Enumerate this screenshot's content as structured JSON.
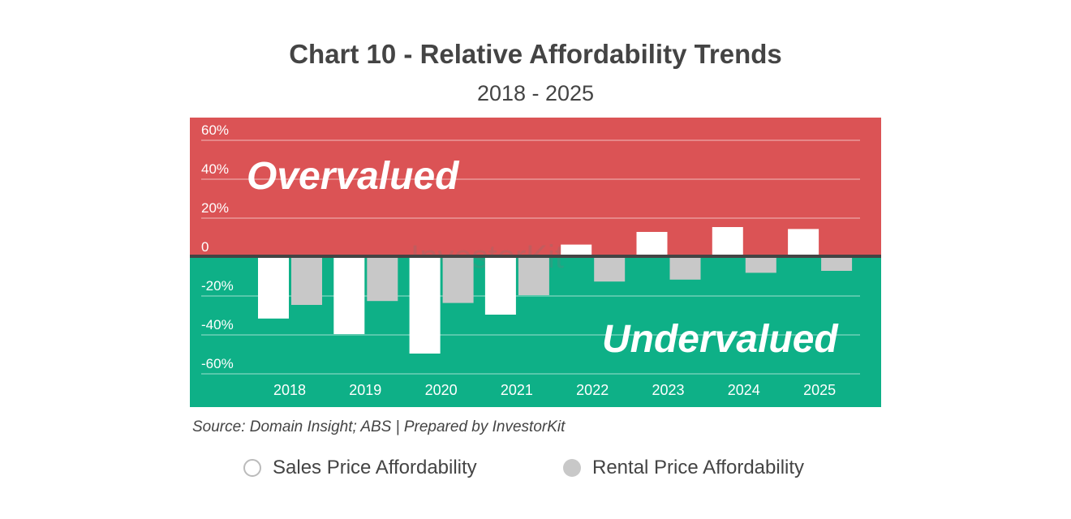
{
  "chart_data": {
    "type": "bar",
    "title": "Chart 10 - Relative Affordability Trends",
    "subtitle": "2018 - 2025",
    "categories": [
      "2018",
      "2019",
      "2020",
      "2021",
      "2022",
      "2023",
      "2024",
      "2025"
    ],
    "series": [
      {
        "name": "Sales Price Affordability",
        "values": [
          -32,
          -40,
          -50,
          -30,
          6,
          12.5,
          15,
          14
        ],
        "color": "#ffffff"
      },
      {
        "name": "Rental Price Affordability",
        "values": [
          -25,
          -23,
          -24,
          -20,
          -13,
          -12,
          -8.5,
          -7.5
        ],
        "color": "#c8c8c8"
      }
    ],
    "ylim": [
      -75,
      70
    ],
    "yticks": [
      60,
      40,
      20,
      0,
      -20,
      -40,
      -60
    ],
    "ytick_labels": [
      "60%",
      "40%",
      "20%",
      "0",
      "-20%",
      "-40%",
      "-60%"
    ],
    "grid": true,
    "legend": "bottom",
    "regions": {
      "over_label": "Overvalued",
      "over_color": "#db5355",
      "under_label": "Undervalued",
      "under_color": "#0eb087"
    },
    "watermark": "InvestorKit",
    "source": "Source: Domain Insight; ABS | Prepared by InvestorKit"
  }
}
